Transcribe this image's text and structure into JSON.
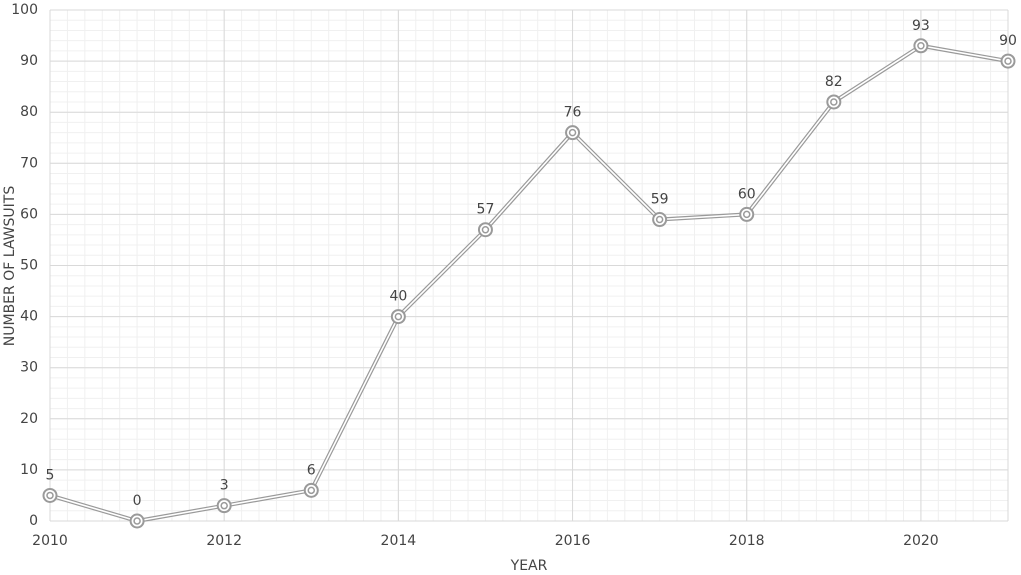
{
  "chart_data": {
    "type": "line",
    "x_label": "YEAR",
    "y_label": "NUMBER OF LAWSUITS",
    "x": [
      2010,
      2011,
      2012,
      2013,
      2014,
      2015,
      2016,
      2017,
      2018,
      2019,
      2020,
      2021
    ],
    "series": [
      {
        "name": "Lawsuits",
        "color": "#9a9a9a",
        "values": [
          5,
          0,
          3,
          6,
          40,
          57,
          76,
          59,
          60,
          82,
          93,
          90
        ]
      }
    ],
    "xlim": [
      2010,
      2021
    ],
    "xticks": [
      2010,
      2012,
      2014,
      2016,
      2018,
      2020
    ],
    "ylim": [
      0,
      100
    ],
    "yticks": [
      0,
      10,
      20,
      30,
      40,
      50,
      60,
      70,
      80,
      90,
      100
    ],
    "grid": true,
    "data_labels": true
  }
}
